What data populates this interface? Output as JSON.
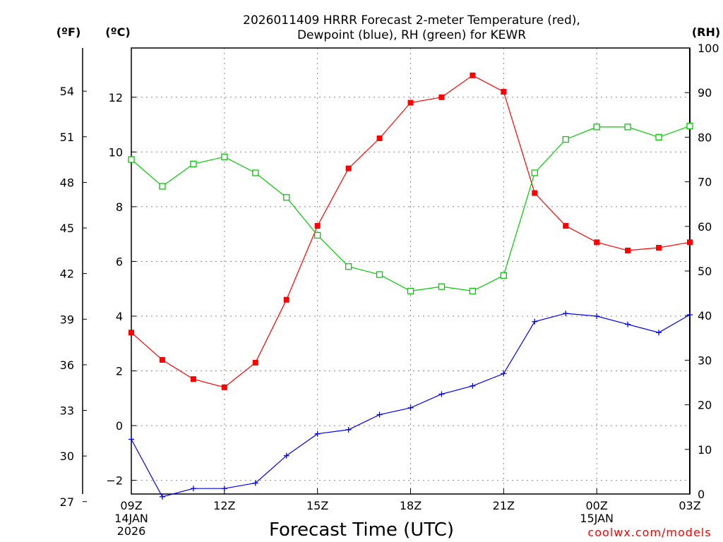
{
  "chart_data": {
    "type": "line",
    "title_line1": "2026011409 HRRR Forecast 2-meter Temperature (red),",
    "title_line2": "Dewpoint (blue), RH (green) for KEWR",
    "xlabel": "Forecast Time (UTC)",
    "units": {
      "fahrenheit": "(ºF)",
      "celsius": "(ºC)",
      "rh": "(RH)"
    },
    "credit": "coolwx.com/models",
    "x_hours": [
      9,
      10,
      11,
      12,
      13,
      14,
      15,
      16,
      17,
      18,
      19,
      20,
      21,
      22,
      23,
      24,
      25,
      26,
      27
    ],
    "xlim": [
      9,
      27
    ],
    "x_ticks": [
      {
        "hour": 9,
        "lines": [
          "09Z",
          "14JAN",
          "2026"
        ]
      },
      {
        "hour": 12,
        "lines": [
          "12Z"
        ]
      },
      {
        "hour": 15,
        "lines": [
          "15Z"
        ]
      },
      {
        "hour": 18,
        "lines": [
          "18Z"
        ]
      },
      {
        "hour": 21,
        "lines": [
          "21Z"
        ]
      },
      {
        "hour": 24,
        "lines": [
          "00Z",
          "15JAN"
        ]
      },
      {
        "hour": 27,
        "lines": [
          "03Z"
        ]
      }
    ],
    "ylim_c": [
      -2.5,
      13.8
    ],
    "yticks_c": [
      -2,
      0,
      2,
      4,
      6,
      8,
      10,
      12
    ],
    "yticks_f": [
      27,
      30,
      33,
      36,
      39,
      42,
      45,
      48,
      51,
      54
    ],
    "ylim_rh": [
      0,
      100
    ],
    "yticks_rh": [
      0,
      10,
      20,
      30,
      40,
      50,
      60,
      70,
      80,
      90,
      100
    ],
    "series": [
      {
        "name": "Temperature",
        "axis": "c",
        "color": "#ff0000",
        "marker": "square-filled",
        "values": [
          3.4,
          2.4,
          1.7,
          1.4,
          2.3,
          4.6,
          7.3,
          9.4,
          10.5,
          11.8,
          12.0,
          12.8,
          12.2,
          8.5,
          7.3,
          6.7,
          6.4,
          6.5,
          6.7
        ]
      },
      {
        "name": "Dewpoint",
        "axis": "c",
        "color": "#0000ff",
        "marker": "plus",
        "values": [
          -0.5,
          -2.6,
          -2.3,
          -2.3,
          -2.1,
          -1.1,
          -0.3,
          -0.15,
          0.4,
          0.65,
          1.15,
          1.45,
          1.9,
          3.8,
          4.1,
          4.0,
          3.7,
          3.4,
          4.05
        ]
      },
      {
        "name": "RH",
        "axis": "rh",
        "color": "#00cc00",
        "marker": "square-open",
        "values": [
          75,
          69,
          74,
          75.6,
          72,
          66.5,
          58,
          51,
          49.2,
          45.5,
          46.5,
          45.5,
          49,
          72,
          79.5,
          82.3,
          82.3,
          80,
          82.5
        ]
      }
    ]
  }
}
